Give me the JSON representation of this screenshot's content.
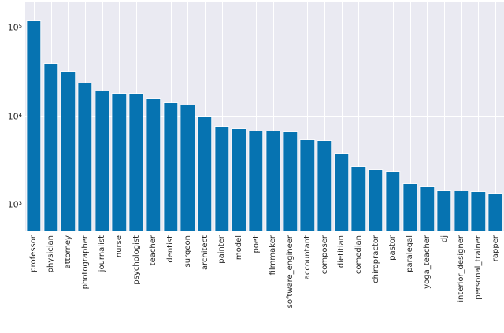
{
  "chart_data": {
    "type": "bar",
    "title": "",
    "xlabel": "",
    "ylabel": "",
    "yscale": "log",
    "ylim": [
      503,
      193000
    ],
    "grid": true,
    "legend": null,
    "categories": [
      "professor",
      "physician",
      "attorney",
      "photographer",
      "journalist",
      "nurse",
      "psychologist",
      "teacher",
      "dentist",
      "surgeon",
      "architect",
      "painter",
      "model",
      "poet",
      "filmmaker",
      "software_engineer",
      "accountant",
      "composer",
      "dietitian",
      "comedian",
      "chiropractor",
      "pastor",
      "paralegal",
      "yoga_teacher",
      "dj",
      "interior_designer",
      "personal_trainer",
      "rapper"
    ],
    "values": [
      118000,
      39500,
      31800,
      23600,
      19200,
      18200,
      17900,
      15700,
      14100,
      13200,
      9700,
      7600,
      7200,
      6800,
      6700,
      6600,
      5400,
      5300,
      3800,
      2700,
      2500,
      2400,
      1700,
      1600,
      1450,
      1420,
      1400,
      1350
    ],
    "yticks": [
      {
        "value": 1000,
        "label": "10³"
      },
      {
        "value": 10000,
        "label": "10⁴"
      },
      {
        "value": 100000,
        "label": "10⁵"
      }
    ],
    "colors": {
      "bar": "#0673b1",
      "axes_background": "#eaeaf2",
      "gridline": "#ffffff",
      "tick_label": "#262626",
      "figure_background": "#ffffff"
    },
    "layout": {
      "bar_width_fraction": 0.8,
      "x_tick_rotation_degrees": 90
    }
  }
}
